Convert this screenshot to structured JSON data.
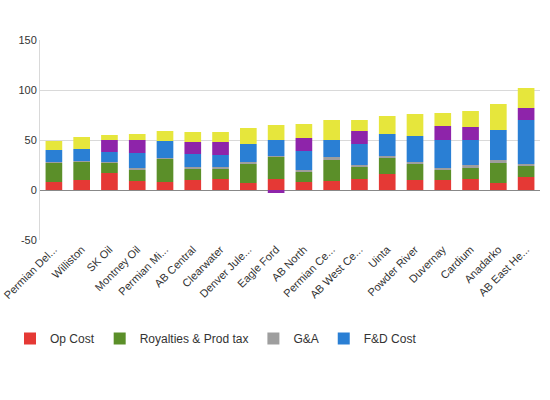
{
  "chart_data": {
    "type": "bar",
    "stacked": true,
    "grid": true,
    "legend": "bottom",
    "categories": [
      "Permian Del...",
      "Williston",
      "SK Oil",
      "Montney Oil",
      "Permian Mi...",
      "AB Central",
      "Clearwater",
      "Denver Jule...",
      "Eagle Ford",
      "AB North",
      "Permian Ce...",
      "AB West Ce...",
      "Uinta",
      "Powder River",
      "Duvernay",
      "Cardium",
      "Anadarko",
      "AB East He..."
    ],
    "series": [
      {
        "name": "Op Cost",
        "color": "#e53935",
        "values": [
          8,
          10,
          17,
          9,
          8,
          10,
          11,
          7,
          11,
          8,
          9,
          11,
          16,
          10,
          10,
          11,
          7,
          13
        ]
      },
      {
        "name": "Royalties & Prod tax",
        "color": "#5b8f29",
        "values": [
          19,
          18,
          10,
          11,
          23,
          11,
          10,
          19,
          22,
          10,
          21,
          12,
          16,
          16,
          10,
          11,
          20,
          11
        ]
      },
      {
        "name": "G&A",
        "color": "#9e9e9e",
        "values": [
          1,
          1,
          1,
          2,
          1,
          2,
          2,
          2,
          1,
          2,
          3,
          2,
          2,
          2,
          2,
          3,
          3,
          2
        ]
      },
      {
        "name": "F&D Cost",
        "color": "#2a7fd4",
        "values": [
          12,
          12,
          10,
          15,
          17,
          13,
          12,
          18,
          16,
          19,
          17,
          21,
          22,
          26,
          28,
          25,
          30,
          44
        ]
      },
      {
        "color": "#8e24aa",
        "values": [
          0,
          0,
          12,
          13,
          0,
          12,
          13,
          0,
          -3,
          13,
          0,
          13,
          0,
          0,
          14,
          13,
          0,
          12
        ]
      },
      {
        "color": "#e6e63c",
        "values": [
          9,
          12,
          5,
          6,
          10,
          10,
          10,
          16,
          15,
          14,
          20,
          11,
          18,
          22,
          13,
          16,
          26,
          20
        ]
      }
    ],
    "ylim": [
      -50,
      150
    ],
    "yticks": [
      -50,
      0,
      50,
      100,
      150
    ]
  }
}
